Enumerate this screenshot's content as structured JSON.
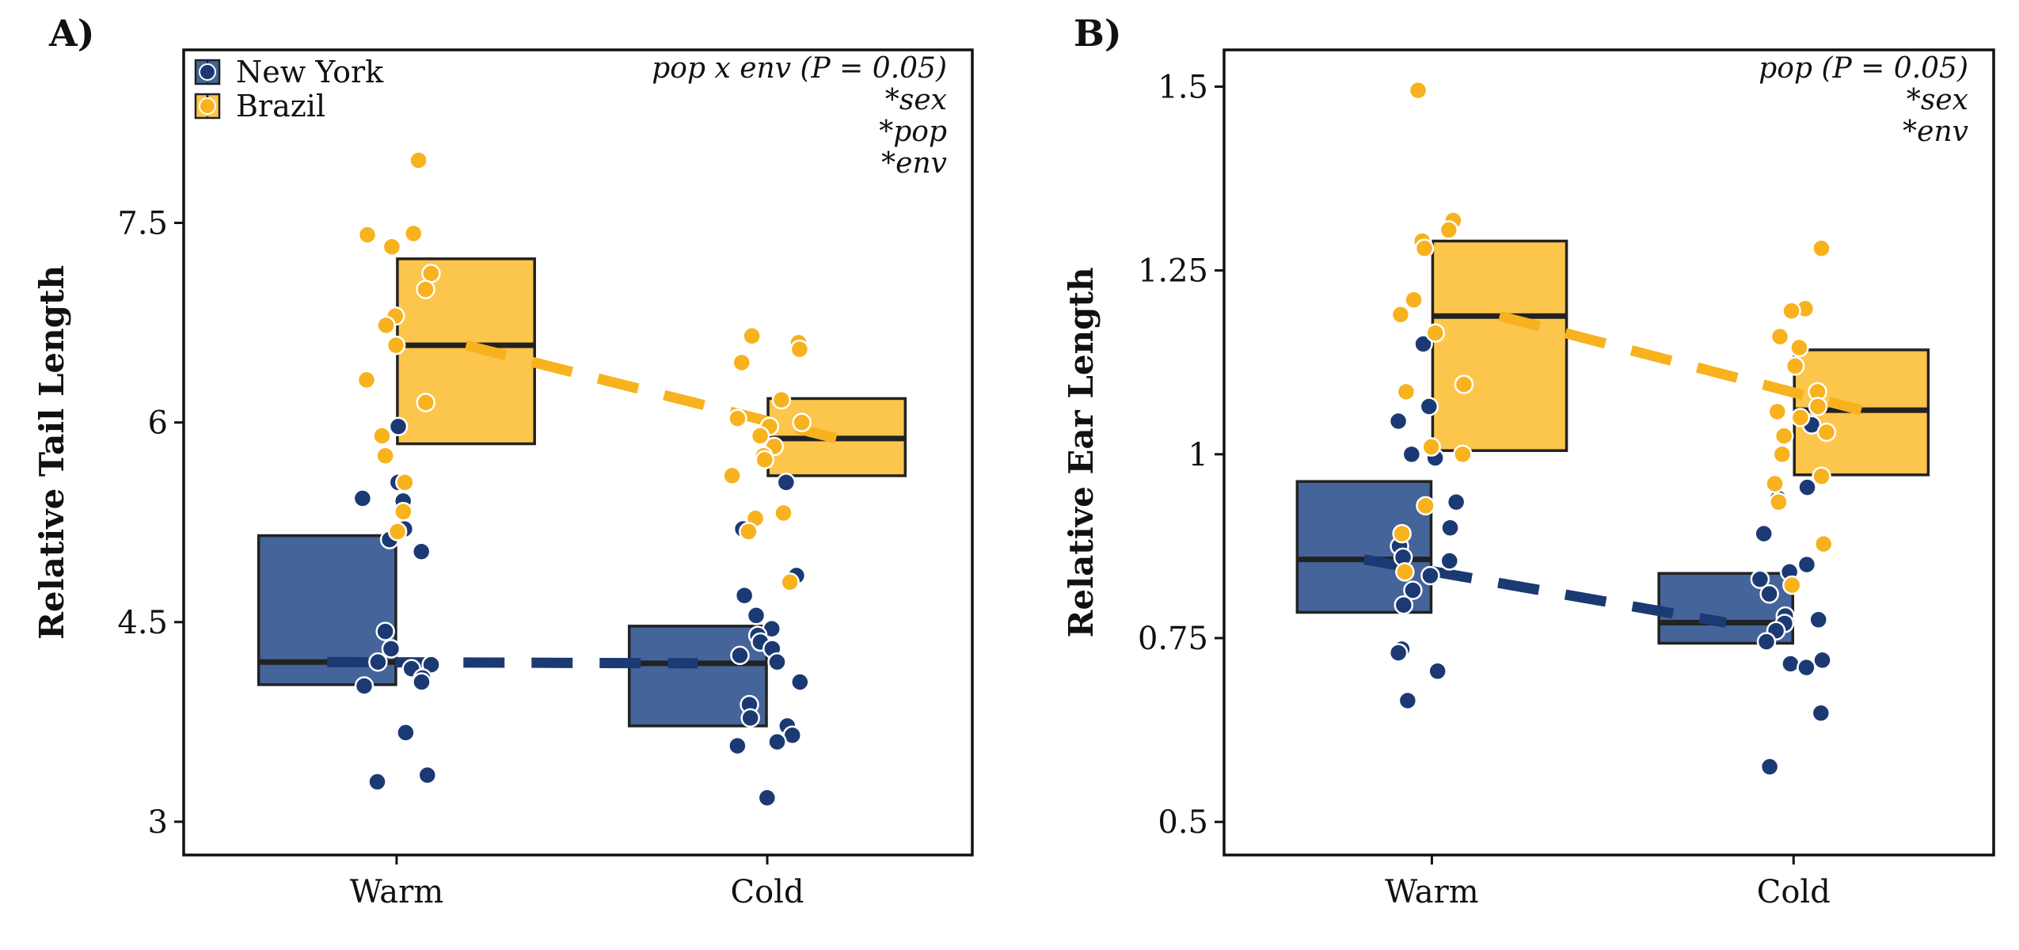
{
  "colors": {
    "New York": "#1b3a73",
    "Brazil": "#f7b21e",
    "box_New York": "#44649a",
    "box_Brazil": "#fcc54c"
  },
  "chart_data": [
    {
      "type": "box",
      "panel": "A)",
      "xlabel": "",
      "ylabel": "Relative Tail Length",
      "categories": [
        "Warm",
        "Cold"
      ],
      "ylim": [
        2.75,
        8.8
      ],
      "yticks": [
        3,
        4.5,
        6,
        7.5
      ],
      "ytick_labels": [
        "3",
        "4.5",
        "6",
        "7.5"
      ],
      "legend": {
        "position": "top-left",
        "entries": [
          "New York",
          "Brazil"
        ]
      },
      "annotations": [
        "pop x env (P = 0.05)",
        "*sex",
        "*pop",
        "*env"
      ],
      "series": [
        {
          "name": "New York",
          "boxes": [
            {
              "category": "Warm",
              "q1": 4.03,
              "median": 4.2,
              "q3": 5.15
            },
            {
              "category": "Cold",
              "q1": 3.72,
              "median": 4.19,
              "q3": 4.47
            }
          ],
          "points": {
            "Warm": [
              5.97,
              5.55,
              5.43,
              5.41,
              5.2,
              5.12,
              5.03,
              4.43,
              4.3,
              4.2,
              4.18,
              4.15,
              4.08,
              4.05,
              4.02,
              3.67,
              3.35,
              3.3
            ],
            "Cold": [
              5.55,
              5.2,
              4.85,
              4.7,
              4.55,
              4.45,
              4.4,
              4.35,
              4.3,
              4.25,
              4.2,
              4.05,
              3.88,
              3.78,
              3.72,
              3.65,
              3.6,
              3.57,
              3.18
            ]
          }
        },
        {
          "name": "Brazil",
          "boxes": [
            {
              "category": "Warm",
              "q1": 5.84,
              "median": 6.58,
              "q3": 7.23
            },
            {
              "category": "Cold",
              "q1": 5.6,
              "median": 5.88,
              "q3": 6.18
            }
          ],
          "points": {
            "Warm": [
              7.97,
              7.42,
              7.41,
              7.32,
              7.12,
              7.0,
              6.8,
              6.73,
              6.58,
              6.32,
              6.15,
              5.9,
              5.75,
              5.55,
              5.33,
              5.18
            ],
            "Cold": [
              6.65,
              6.6,
              6.55,
              6.45,
              6.17,
              6.03,
              6.0,
              5.97,
              5.9,
              5.82,
              5.75,
              5.72,
              5.6,
              5.32,
              5.28,
              5.18,
              4.8
            ]
          }
        }
      ]
    },
    {
      "type": "box",
      "panel": "B)",
      "xlabel": "",
      "ylabel": "Relative Ear Length",
      "categories": [
        "Warm",
        "Cold"
      ],
      "ylim": [
        0.455,
        1.55
      ],
      "yticks": [
        0.5,
        0.75,
        1,
        1.25,
        1.5
      ],
      "ytick_labels": [
        "0.5",
        "0.75",
        "1",
        "1.25",
        "1.5"
      ],
      "annotations": [
        "pop (P = 0.05)",
        "*sex",
        "*env"
      ],
      "series": [
        {
          "name": "New York",
          "boxes": [
            {
              "category": "Warm",
              "q1": 0.785,
              "median": 0.857,
              "q3": 0.963
            },
            {
              "category": "Cold",
              "q1": 0.743,
              "median": 0.771,
              "q3": 0.838
            }
          ],
          "points": {
            "Warm": [
              1.15,
              1.065,
              1.045,
              1.0,
              0.995,
              0.935,
              0.9,
              0.875,
              0.86,
              0.855,
              0.835,
              0.815,
              0.795,
              0.735,
              0.73,
              0.705,
              0.665
            ],
            "Cold": [
              1.04,
              0.955,
              0.94,
              0.892,
              0.85,
              0.84,
              0.83,
              0.81,
              0.78,
              0.775,
              0.77,
              0.76,
              0.745,
              0.72,
              0.715,
              0.71,
              0.648,
              0.575
            ]
          }
        },
        {
          "name": "Brazil",
          "boxes": [
            {
              "category": "Warm",
              "q1": 1.005,
              "median": 1.188,
              "q3": 1.29
            },
            {
              "category": "Cold",
              "q1": 0.972,
              "median": 1.06,
              "q3": 1.142
            }
          ],
          "points": {
            "Warm": [
              1.495,
              1.318,
              1.305,
              1.29,
              1.28,
              1.21,
              1.19,
              1.165,
              1.095,
              1.085,
              1.01,
              1.0,
              0.93,
              0.892,
              0.84
            ],
            "Cold": [
              1.28,
              1.198,
              1.195,
              1.16,
              1.145,
              1.12,
              1.085,
              1.065,
              1.058,
              1.05,
              1.03,
              1.025,
              1.0,
              0.97,
              0.96,
              0.935,
              0.878,
              0.822
            ]
          }
        }
      ]
    }
  ]
}
